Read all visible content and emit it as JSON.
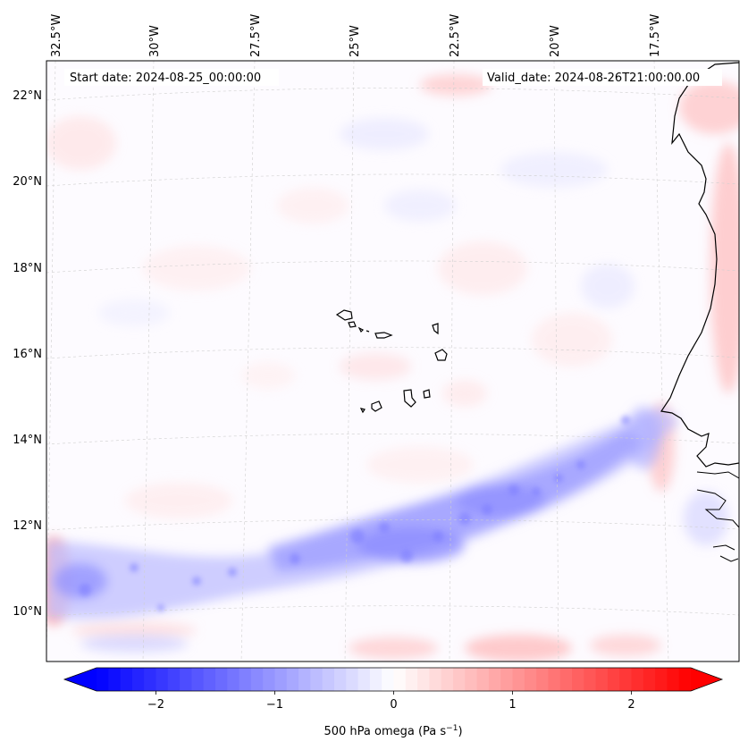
{
  "map": {
    "start_date_label": "Start date: 2024-08-25_00:00:00",
    "valid_date_label": "Valid_date: 2024-08-26T21:00:00.00",
    "lon_labels": [
      "32.5°W",
      "30°W",
      "27.5°W",
      "25°W",
      "22.5°W",
      "20°W",
      "17.5°W"
    ],
    "lat_labels": [
      "22°N",
      "20°N",
      "18°N",
      "16°N",
      "14°N",
      "12°N",
      "10°N"
    ]
  },
  "colorbar": {
    "label": "500 hPa omega (Pa s",
    "label_sup": "−1",
    "label_close": ")",
    "tick_labels": [
      "−2",
      "−1",
      "0",
      "1",
      "2"
    ],
    "ticks": [
      -2,
      -1,
      0,
      1,
      2
    ],
    "vmin": -2.5,
    "vmax": 2.5,
    "colors": {
      "negative": "#0000ff",
      "zero": "#ffffff",
      "positive": "#ff0000"
    }
  }
}
